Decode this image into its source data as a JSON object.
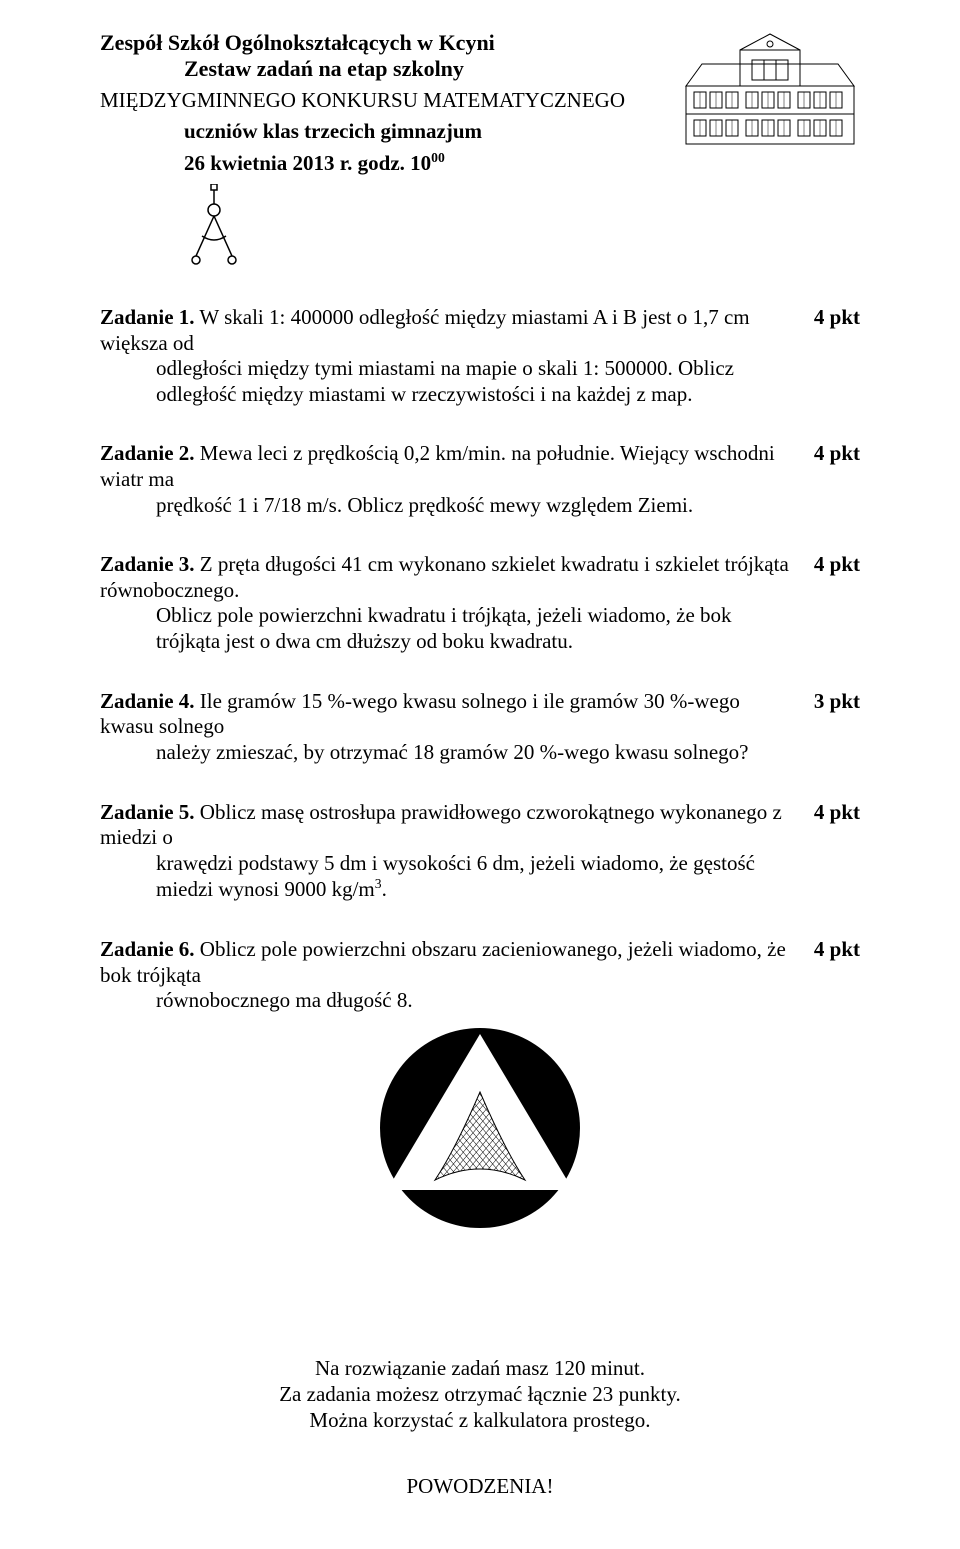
{
  "header": {
    "school": "Zespół Szkół Ogólnokształcących w Kcyni",
    "set": "Zestaw zadań na etap szkolny",
    "contest": "MIĘDZYGMINNEGO KONKURSU MATEMATYCZNEGO",
    "students": "uczniów klas trzecich gimnazjum",
    "date_prefix": "26 kwietnia 2013 r.  godz. 10",
    "date_sup": "00"
  },
  "tasks": [
    {
      "label": "Zadanie 1.",
      "text_first": " W skali 1: 400000 odległość między miastami A i B jest o 1,7 cm większa od",
      "text_rest": "odległości między tymi miastami  na mapie o skali 1: 500000. Oblicz odległość między miastami w rzeczywistości i na każdej z map.",
      "pts": "4 pkt"
    },
    {
      "label": "Zadanie 2.",
      "text_first": " Mewa leci z prędkością 0,2 km/min. na południe. Wiejący wschodni wiatr ma",
      "text_rest": "prędkość 1 i 7/18 m/s. Oblicz prędkość mewy względem Ziemi.",
      "pts": "4 pkt"
    },
    {
      "label": "Zadanie 3.",
      "text_first": " Z pręta długości 41 cm wykonano szkielet kwadratu i szkielet trójkąta równobocznego.",
      "text_rest": "Oblicz pole powierzchni kwadratu i trójkąta, jeżeli wiadomo, że bok trójkąta jest o dwa  cm dłuższy od boku kwadratu.",
      "pts": "4 pkt"
    },
    {
      "label": "Zadanie 4.",
      "text_first": " Ile gramów 15 %-wego kwasu solnego i ile gramów 30 %-wego kwasu solnego",
      "text_rest": "należy zmieszać, by otrzymać 18 gramów 20 %-wego kwasu solnego?",
      "pts": "3 pkt"
    },
    {
      "label": "Zadanie 5.",
      "text_first": " Oblicz masę ostrosłupa prawidłowego czworokątnego wykonanego z miedzi o",
      "text_rest_html": "krawędzi podstawy 5 dm i wysokości 6 dm, jeżeli wiadomo, że gęstość miedzi wynosi 9000 kg/m<sup>3</sup>.",
      "pts": "4 pkt"
    },
    {
      "label": "Zadanie 6.",
      "text_first": " Oblicz pole powierzchni obszaru zacieniowanego, jeżeli wiadomo, że bok trójkąta",
      "text_rest": "równobocznego ma długość 8.",
      "pts": "4 pkt"
    }
  ],
  "footer": {
    "line1": "Na rozwiązanie zadań masz 120 minut.",
    "line2": "Za zadania możesz otrzymać łącznie 23 punkty.",
    "line3": "Można korzystać z kalkulatora prostego.",
    "goodluck": "POWODZENIA!"
  },
  "figure": {
    "circle_fill": "#000000",
    "triangle_fill": "#ffffff",
    "hatch_stroke": "#000000"
  }
}
